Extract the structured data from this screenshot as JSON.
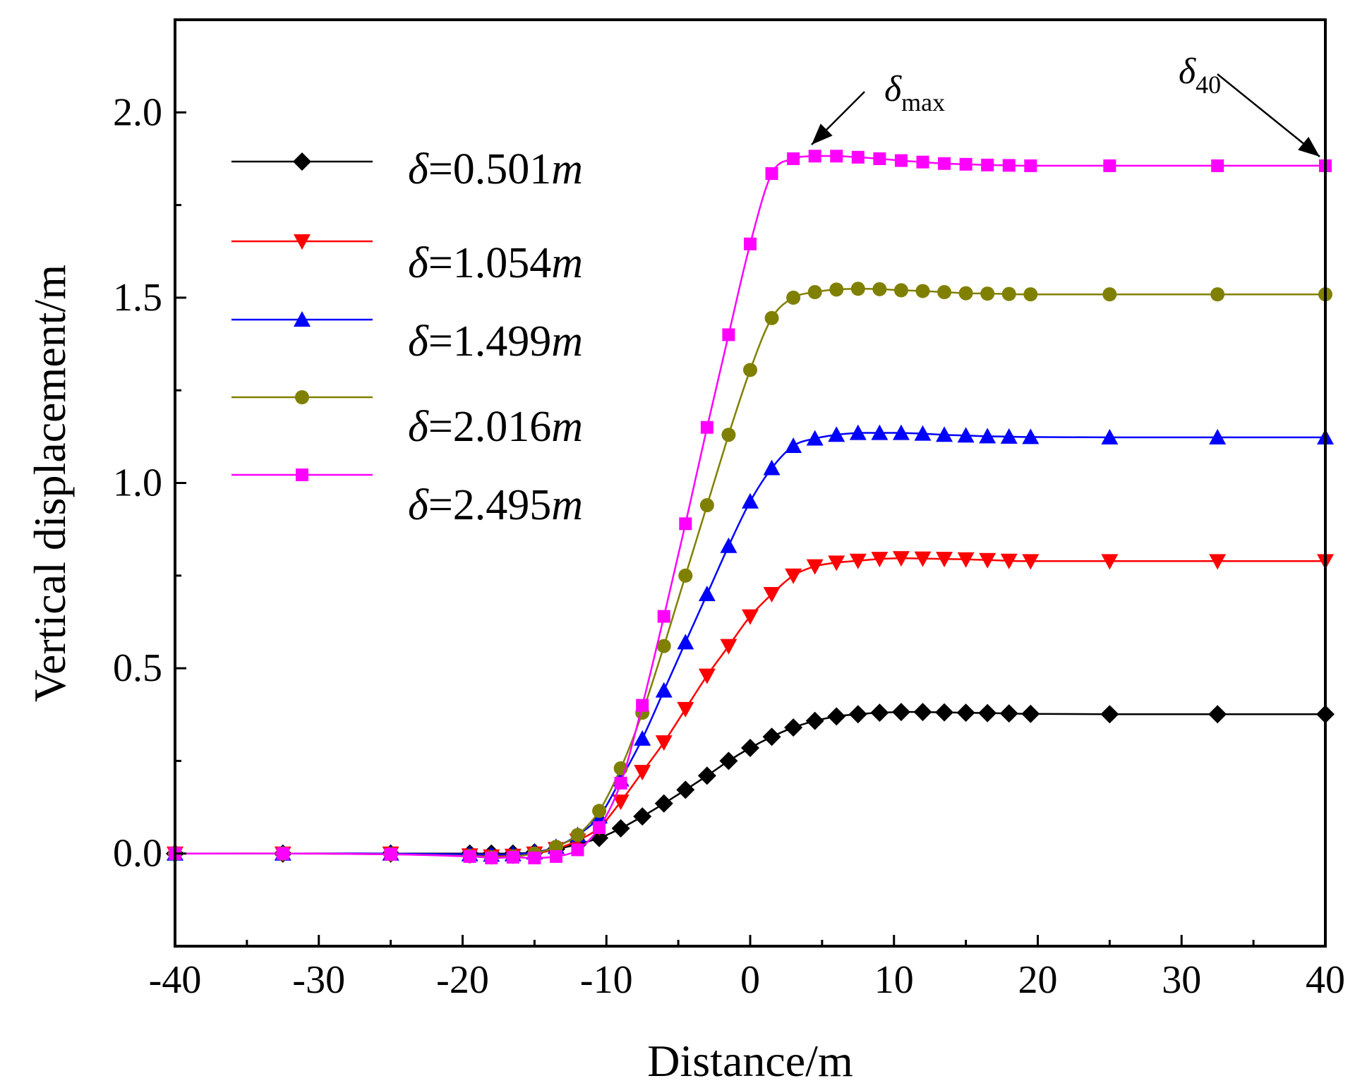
{
  "chart_data": {
    "type": "line",
    "title": "",
    "xlabel": "Distance/m",
    "ylabel": "Vertical displacement/m",
    "xlim": [
      -40,
      40
    ],
    "ylim": [
      -0.25,
      2.25
    ],
    "xticks": [
      -40,
      -30,
      -20,
      -10,
      0,
      10,
      20,
      30,
      40
    ],
    "xtick_labels": [
      "-40",
      "-30",
      "-20",
      "-10",
      "0",
      "10",
      "20",
      "30",
      "40"
    ],
    "yticks": [
      0.0,
      0.5,
      1.0,
      1.5,
      2.0
    ],
    "ytick_labels": [
      "0.0",
      "0.5",
      "1.0",
      "1.5",
      "2.0"
    ],
    "grid": false,
    "legend_position": "top-left",
    "x": [
      -40,
      -32.5,
      -25,
      -19.5,
      -18,
      -16.5,
      -15,
      -13.5,
      -12,
      -10.5,
      -9,
      -7.5,
      -6,
      -4.5,
      -3,
      -1.5,
      0,
      1.5,
      3,
      4.5,
      6,
      7.5,
      9,
      10.5,
      12,
      13.5,
      15,
      16.5,
      18,
      19.5,
      25,
      32.5,
      40
    ],
    "series": [
      {
        "name": "δ=0.501m",
        "symbol": "δ",
        "eq": "=0.501",
        "unit": "m",
        "color": "#000000",
        "marker": "diamond",
        "values": [
          0,
          0,
          0,
          0,
          0,
          0,
          0.003,
          0.012,
          0.025,
          0.042,
          0.068,
          0.1,
          0.135,
          0.172,
          0.21,
          0.25,
          0.285,
          0.315,
          0.34,
          0.358,
          0.37,
          0.376,
          0.38,
          0.382,
          0.382,
          0.381,
          0.38,
          0.379,
          0.378,
          0.377,
          0.376,
          0.376,
          0.376
        ]
      },
      {
        "name": "δ=1.054m",
        "symbol": "δ",
        "eq": "=1.054",
        "unit": "m",
        "color": "#ff0000",
        "marker": "triangle-down",
        "values": [
          0,
          0,
          0,
          -0.005,
          -0.008,
          -0.006,
          0,
          0.012,
          0.035,
          0.07,
          0.14,
          0.22,
          0.3,
          0.39,
          0.48,
          0.56,
          0.64,
          0.7,
          0.75,
          0.775,
          0.785,
          0.79,
          0.795,
          0.797,
          0.796,
          0.795,
          0.794,
          0.792,
          0.79,
          0.789,
          0.789,
          0.789,
          0.789
        ]
      },
      {
        "name": "δ=1.499m",
        "symbol": "δ",
        "eq": "=1.499",
        "unit": "m",
        "color": "#0000ff",
        "marker": "triangle-up",
        "values": [
          0,
          0,
          0,
          -0.002,
          -0.003,
          -0.002,
          0.003,
          0.018,
          0.05,
          0.1,
          0.2,
          0.31,
          0.44,
          0.57,
          0.7,
          0.83,
          0.95,
          1.04,
          1.1,
          1.12,
          1.13,
          1.135,
          1.135,
          1.135,
          1.133,
          1.13,
          1.128,
          1.126,
          1.125,
          1.124,
          1.123,
          1.123,
          1.123
        ]
      },
      {
        "name": "δ=2.016m",
        "symbol": "δ",
        "eq": "=2.016",
        "unit": "m",
        "color": "#808000",
        "marker": "circle",
        "values": [
          0,
          0,
          -0.002,
          -0.007,
          -0.01,
          -0.008,
          0,
          0.018,
          0.05,
          0.115,
          0.23,
          0.38,
          0.56,
          0.75,
          0.94,
          1.13,
          1.305,
          1.445,
          1.5,
          1.515,
          1.522,
          1.524,
          1.523,
          1.52,
          1.518,
          1.515,
          1.512,
          1.511,
          1.51,
          1.509,
          1.509,
          1.509,
          1.509
        ]
      },
      {
        "name": "δ=2.495m",
        "symbol": "δ",
        "eq": "=2.495",
        "unit": "m",
        "color": "#ff00ff",
        "marker": "square",
        "values": [
          0,
          0,
          -0.002,
          -0.008,
          -0.012,
          -0.01,
          -0.012,
          -0.008,
          0.01,
          0.07,
          0.19,
          0.4,
          0.64,
          0.89,
          1.15,
          1.4,
          1.645,
          1.835,
          1.875,
          1.882,
          1.882,
          1.879,
          1.875,
          1.87,
          1.866,
          1.862,
          1.86,
          1.858,
          1.857,
          1.856,
          1.856,
          1.856,
          1.856
        ]
      }
    ],
    "annotations": [
      {
        "id": "max",
        "symbol": "δ",
        "sub": "max",
        "target_x": 4.5,
        "target_y": 1.882
      },
      {
        "id": "d40",
        "symbol": "δ",
        "sub": "40",
        "target_x": 40,
        "target_y": 1.856
      }
    ]
  }
}
